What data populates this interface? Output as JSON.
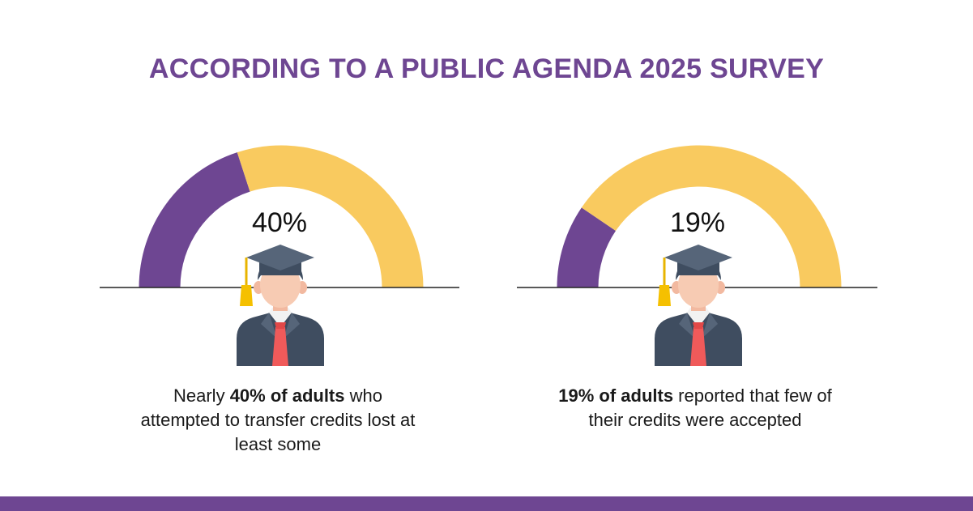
{
  "title": "ACCORDING TO A PUBLIC AGENDA 2025 SURVEY",
  "colors": {
    "purple": "#6e4692",
    "yellow": "#f9ca5f",
    "baseline": "#222222"
  },
  "chart_data": [
    {
      "type": "pie",
      "style": "half-donut gauge",
      "values": [
        40,
        60
      ],
      "label": "40%",
      "caption": {
        "bold": "40% of adults",
        "before": "Nearly ",
        "after": " who attempted to transfer credits lost at least some"
      }
    },
    {
      "type": "pie",
      "style": "half-donut gauge",
      "values": [
        19,
        81
      ],
      "label": "19%",
      "caption": {
        "bold": "19% of adults",
        "before": "",
        "after": " reported that few of their credits were accepted"
      }
    }
  ],
  "icons": [
    "graduate-icon",
    "graduate-icon"
  ]
}
